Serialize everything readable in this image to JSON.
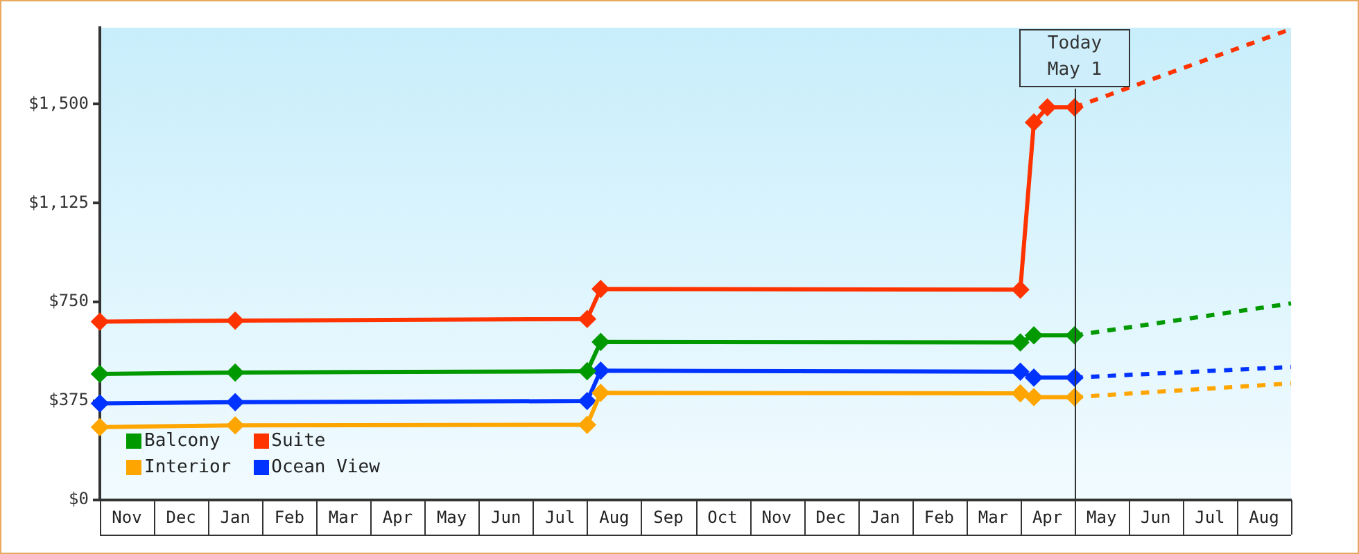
{
  "chart_data": {
    "type": "line",
    "categories": [
      null,
      null,
      "Nov",
      null,
      null,
      null,
      "Dec",
      null,
      null,
      null,
      "Jan",
      null,
      null,
      null,
      "Feb",
      null,
      null,
      null,
      "Mar",
      null,
      null,
      null,
      "Apr",
      null,
      null,
      null,
      "May",
      null,
      null,
      null,
      "Jun",
      null,
      null,
      null,
      "Jul",
      null,
      null,
      null,
      "Aug",
      null,
      null,
      null,
      "Sep",
      null,
      null,
      null,
      "Oct",
      null,
      null,
      null,
      "Nov",
      null,
      null,
      null,
      "Dec",
      null,
      null,
      null,
      "Jan",
      null,
      null,
      null,
      "Feb",
      null,
      null,
      null,
      "Mar",
      null,
      null,
      null,
      "Apr",
      null,
      null,
      null,
      "May",
      null,
      null,
      null,
      "Jun",
      null,
      null,
      null,
      "Jul",
      null,
      null,
      null,
      "Aug",
      null,
      null
    ],
    "ylim": [
      0,
      1790
    ],
    "yticks": [
      {
        "value": 0,
        "label": "$0"
      },
      {
        "value": 375,
        "label": "$375"
      },
      {
        "value": 750,
        "label": "$750"
      },
      {
        "value": 1125,
        "label": "$1,125"
      },
      {
        "value": 1500,
        "label": "$1,500"
      }
    ],
    "marker": "diamond",
    "legend": "bottom left",
    "grid": false,
    "series": [
      {
        "name": "Balcony",
        "color": "#009900",
        "values": [
          478,
          null,
          null,
          null,
          null,
          null,
          null,
          null,
          null,
          null,
          483,
          null,
          null,
          null,
          null,
          null,
          null,
          null,
          null,
          null,
          null,
          null,
          null,
          null,
          null,
          null,
          null,
          null,
          null,
          null,
          null,
          null,
          null,
          null,
          null,
          null,
          488,
          599,
          null,
          null,
          null,
          null,
          null,
          null,
          null,
          null,
          null,
          null,
          null,
          null,
          null,
          null,
          null,
          null,
          null,
          null,
          null,
          null,
          null,
          null,
          null,
          null,
          null,
          null,
          null,
          null,
          null,
          null,
          597,
          624,
          null,
          null,
          624,
          null,
          null,
          null,
          null,
          null,
          null,
          null,
          null,
          null,
          null,
          null,
          null,
          null,
          null,
          null,
          null
        ]
      },
      {
        "name": "Suite",
        "color": "#ff3300",
        "values": [
          676,
          null,
          null,
          null,
          null,
          null,
          null,
          null,
          null,
          null,
          680,
          null,
          null,
          null,
          null,
          null,
          null,
          null,
          null,
          null,
          null,
          null,
          null,
          null,
          null,
          null,
          null,
          null,
          null,
          null,
          null,
          null,
          null,
          null,
          null,
          null,
          686,
          800,
          null,
          null,
          null,
          null,
          null,
          null,
          null,
          null,
          null,
          null,
          null,
          null,
          null,
          null,
          null,
          null,
          null,
          null,
          null,
          null,
          null,
          null,
          null,
          null,
          null,
          null,
          null,
          null,
          null,
          null,
          797,
          1431,
          1488,
          null,
          1488,
          null,
          null,
          null,
          null,
          null,
          null,
          null,
          null,
          null,
          null,
          null,
          null,
          null,
          null,
          null,
          null
        ]
      },
      {
        "name": "Interior",
        "color": "#ffa500",
        "values": [
          276,
          null,
          null,
          null,
          null,
          null,
          null,
          null,
          null,
          null,
          283,
          null,
          null,
          null,
          null,
          null,
          null,
          null,
          null,
          null,
          null,
          null,
          null,
          null,
          null,
          null,
          null,
          null,
          null,
          null,
          null,
          null,
          null,
          null,
          null,
          null,
          285,
          406,
          null,
          null,
          null,
          null,
          null,
          null,
          null,
          null,
          null,
          null,
          null,
          null,
          null,
          null,
          null,
          null,
          null,
          null,
          null,
          null,
          null,
          null,
          null,
          null,
          null,
          null,
          null,
          null,
          null,
          null,
          404,
          390,
          null,
          null,
          390,
          null,
          null,
          null,
          null,
          null,
          null,
          null,
          null,
          null,
          null,
          null,
          null,
          null,
          null,
          null,
          null
        ]
      },
      {
        "name": "Ocean View",
        "color": "#0033ff",
        "values": [
          366,
          null,
          null,
          null,
          null,
          null,
          null,
          null,
          null,
          null,
          371,
          null,
          null,
          null,
          null,
          null,
          null,
          null,
          null,
          null,
          null,
          null,
          null,
          null,
          null,
          null,
          null,
          null,
          null,
          null,
          null,
          null,
          null,
          null,
          null,
          null,
          375,
          490,
          null,
          null,
          null,
          null,
          null,
          null,
          null,
          null,
          null,
          null,
          null,
          null,
          null,
          null,
          null,
          null,
          null,
          null,
          null,
          null,
          null,
          null,
          null,
          null,
          null,
          null,
          null,
          null,
          null,
          null,
          486,
          464,
          null,
          null,
          464,
          null,
          null,
          null,
          null,
          null,
          null,
          null,
          null,
          null,
          null,
          null,
          null,
          null,
          null,
          null,
          null
        ]
      },
      {
        "type": "line",
        "color": "#009900",
        "line_style": "dashed",
        "marker": "none",
        "values": [
          null,
          null,
          null,
          null,
          null,
          null,
          null,
          null,
          null,
          null,
          null,
          null,
          null,
          null,
          null,
          null,
          null,
          null,
          null,
          null,
          null,
          null,
          null,
          null,
          null,
          null,
          null,
          null,
          null,
          null,
          null,
          null,
          null,
          null,
          null,
          null,
          null,
          null,
          null,
          null,
          null,
          null,
          null,
          null,
          null,
          null,
          null,
          null,
          null,
          null,
          null,
          null,
          null,
          null,
          null,
          null,
          null,
          null,
          null,
          null,
          null,
          null,
          null,
          null,
          null,
          null,
          null,
          null,
          null,
          null,
          null,
          null,
          624,
          null,
          null,
          null,
          null,
          null,
          null,
          null,
          null,
          null,
          null,
          null,
          null,
          null,
          null,
          null,
          745
        ]
      },
      {
        "type": "line",
        "color": "#ff3300",
        "line_style": "dashed",
        "marker": "none",
        "values": [
          null,
          null,
          null,
          null,
          null,
          null,
          null,
          null,
          null,
          null,
          null,
          null,
          null,
          null,
          null,
          null,
          null,
          null,
          null,
          null,
          null,
          null,
          null,
          null,
          null,
          null,
          null,
          null,
          null,
          null,
          null,
          null,
          null,
          null,
          null,
          null,
          null,
          null,
          null,
          null,
          null,
          null,
          null,
          null,
          null,
          null,
          null,
          null,
          null,
          null,
          null,
          null,
          null,
          null,
          null,
          null,
          null,
          null,
          null,
          null,
          null,
          null,
          null,
          null,
          null,
          null,
          null,
          null,
          null,
          null,
          null,
          null,
          1488,
          null,
          null,
          null,
          null,
          null,
          null,
          null,
          null,
          null,
          null,
          null,
          null,
          null,
          null,
          null,
          1785
        ]
      },
      {
        "type": "line",
        "color": "#ffa500",
        "line_style": "dashed",
        "marker": "none",
        "values": [
          null,
          null,
          null,
          null,
          null,
          null,
          null,
          null,
          null,
          null,
          null,
          null,
          null,
          null,
          null,
          null,
          null,
          null,
          null,
          null,
          null,
          null,
          null,
          null,
          null,
          null,
          null,
          null,
          null,
          null,
          null,
          null,
          null,
          null,
          null,
          null,
          null,
          null,
          null,
          null,
          null,
          null,
          null,
          null,
          null,
          null,
          null,
          null,
          null,
          null,
          null,
          null,
          null,
          null,
          null,
          null,
          null,
          null,
          null,
          null,
          null,
          null,
          null,
          null,
          null,
          null,
          null,
          null,
          null,
          null,
          null,
          null,
          390,
          null,
          null,
          null,
          null,
          null,
          null,
          null,
          null,
          null,
          null,
          null,
          null,
          null,
          null,
          null,
          442
        ]
      },
      {
        "type": "line",
        "color": "#0033ff",
        "line_style": "dashed",
        "marker": "none",
        "values": [
          null,
          null,
          null,
          null,
          null,
          null,
          null,
          null,
          null,
          null,
          null,
          null,
          null,
          null,
          null,
          null,
          null,
          null,
          null,
          null,
          null,
          null,
          null,
          null,
          null,
          null,
          null,
          null,
          null,
          null,
          null,
          null,
          null,
          null,
          null,
          null,
          null,
          null,
          null,
          null,
          null,
          null,
          null,
          null,
          null,
          null,
          null,
          null,
          null,
          null,
          null,
          null,
          null,
          null,
          null,
          null,
          null,
          null,
          null,
          null,
          null,
          null,
          null,
          null,
          null,
          null,
          null,
          null,
          null,
          null,
          null,
          null,
          464,
          null,
          null,
          null,
          null,
          null,
          null,
          null,
          null,
          null,
          null,
          null,
          null,
          null,
          null,
          null,
          504
        ]
      }
    ],
    "annotations": [
      "Today\nMay 1"
    ]
  }
}
